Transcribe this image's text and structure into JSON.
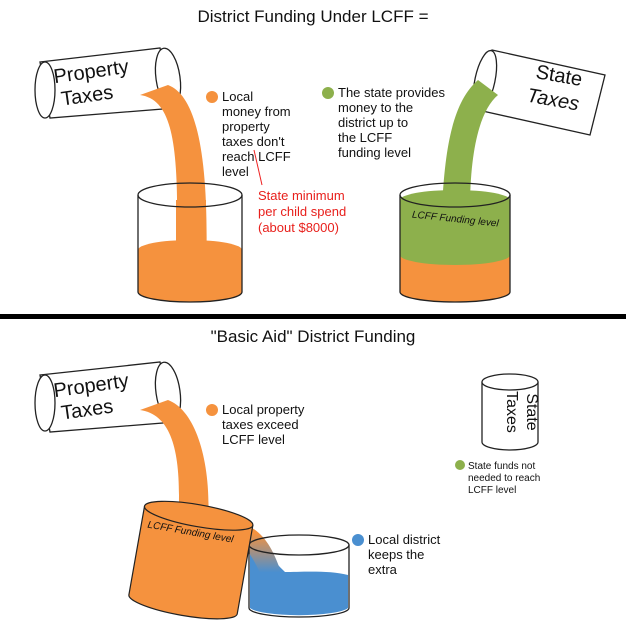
{
  "top": {
    "title": "District Funding Under LCFF =",
    "property_taxes": [
      "Property",
      "Taxes"
    ],
    "state_taxes": [
      "State",
      "Taxes"
    ],
    "local_note": [
      "Local",
      "money from",
      "property",
      "taxes don't",
      "reach LCFF",
      "level"
    ],
    "state_note": [
      "The state provides",
      "money to the",
      "district up to",
      "the LCFF",
      "funding level"
    ],
    "minimum_note": [
      "State minimum",
      "per child spend",
      "(about $8000)"
    ],
    "lcff_level": "LCFF Funding level"
  },
  "bottom": {
    "title": "\"Basic Aid\" District Funding",
    "property_taxes": [
      "Property",
      "Taxes"
    ],
    "state_taxes": [
      "State",
      "Taxes"
    ],
    "local_note": [
      "Local property",
      "taxes exceed",
      "LCFF level"
    ],
    "state_note": [
      "State funds not",
      "needed to reach",
      "LCFF level"
    ],
    "extra_note": [
      "Local district",
      "keeps the",
      "extra"
    ],
    "lcff_level": "LCFF Funding level"
  }
}
